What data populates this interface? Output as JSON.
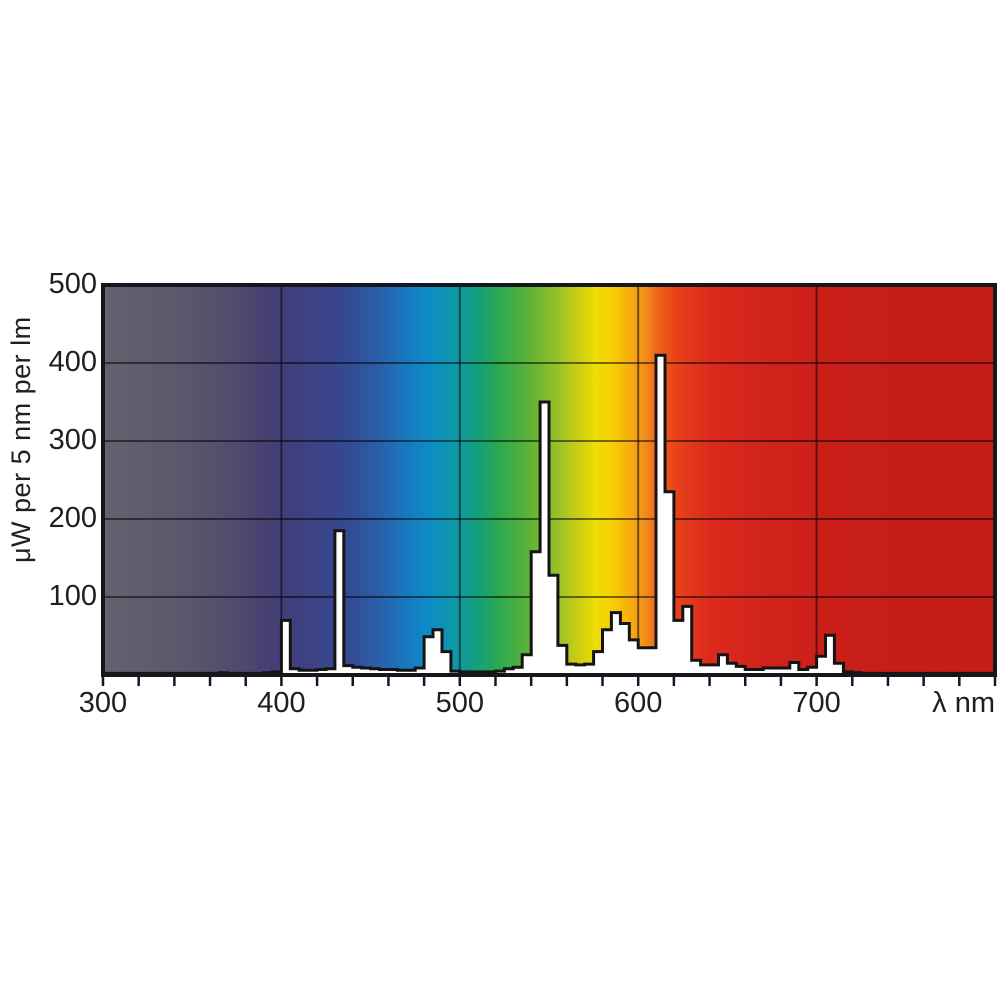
{
  "chart_data": {
    "type": "area",
    "step": true,
    "title": "",
    "xlabel": "λ nm",
    "ylabel": "μW per 5 nm per lm",
    "x_range": [
      300,
      800
    ],
    "y_range": [
      0,
      500
    ],
    "x_major_ticks": [
      300,
      400,
      500,
      600,
      700
    ],
    "x_tick_labels": [
      "300",
      "400",
      "500",
      "600",
      "700"
    ],
    "x_minor_tick_step": 20,
    "y_ticks": [
      100,
      200,
      300,
      400,
      500
    ],
    "y_tick_labels": [
      "100",
      "200",
      "300",
      "400",
      "500"
    ],
    "grid": {
      "vertical_at": [
        400,
        500,
        600,
        700
      ],
      "horizontal_at": [
        100,
        200,
        300,
        400
      ]
    },
    "legend": "none",
    "bin_start": 300,
    "bin_width": 5,
    "values": [
      2,
      2,
      2,
      2,
      2,
      2,
      2,
      2,
      2,
      2,
      2,
      2,
      2,
      3,
      2,
      2,
      2,
      2,
      3,
      4,
      70,
      8,
      6,
      6,
      7,
      8,
      185,
      12,
      10,
      9,
      8,
      7,
      7,
      6,
      6,
      9,
      49,
      58,
      30,
      5,
      4,
      4,
      4,
      4,
      5,
      8,
      10,
      26,
      158,
      350,
      128,
      38,
      14,
      13,
      14,
      30,
      58,
      80,
      66,
      45,
      35,
      35,
      410,
      235,
      70,
      88,
      19,
      13,
      13,
      26,
      15,
      11,
      7,
      7,
      9,
      9,
      9,
      16,
      7,
      10,
      24,
      51,
      15,
      4,
      3,
      2,
      2,
      2,
      2,
      2,
      2,
      2,
      2,
      2,
      2,
      2,
      2,
      2,
      2,
      2
    ],
    "spectrum_gradient_stops": [
      [
        300,
        "#63636f"
      ],
      [
        345,
        "#5c566c"
      ],
      [
        375,
        "#514a6d"
      ],
      [
        395,
        "#443e74"
      ],
      [
        415,
        "#3e4184"
      ],
      [
        435,
        "#35488f"
      ],
      [
        455,
        "#2a5fa9"
      ],
      [
        470,
        "#1878c0"
      ],
      [
        482,
        "#0d8cc6"
      ],
      [
        495,
        "#0e96ad"
      ],
      [
        508,
        "#119e83"
      ],
      [
        522,
        "#2ca951"
      ],
      [
        538,
        "#5bb237"
      ],
      [
        552,
        "#8cbe2b"
      ],
      [
        565,
        "#c6cc16"
      ],
      [
        576,
        "#eedd06"
      ],
      [
        585,
        "#f8cf03"
      ],
      [
        593,
        "#f7b508"
      ],
      [
        603,
        "#f3921a"
      ],
      [
        612,
        "#ee6018"
      ],
      [
        622,
        "#e7401b"
      ],
      [
        640,
        "#dc2b1c"
      ],
      [
        670,
        "#d0231b"
      ],
      [
        710,
        "#c91e18"
      ],
      [
        800,
        "#c41c16"
      ]
    ],
    "colors": {
      "curve_fill": "#ffffff",
      "curve_stroke": "#141414",
      "border": "#16161e",
      "gridline": "#000000",
      "gridline_opacity": 0.52,
      "tick": "#16161e",
      "text": "#1f1f1f",
      "page_background": "#ffffff"
    }
  }
}
